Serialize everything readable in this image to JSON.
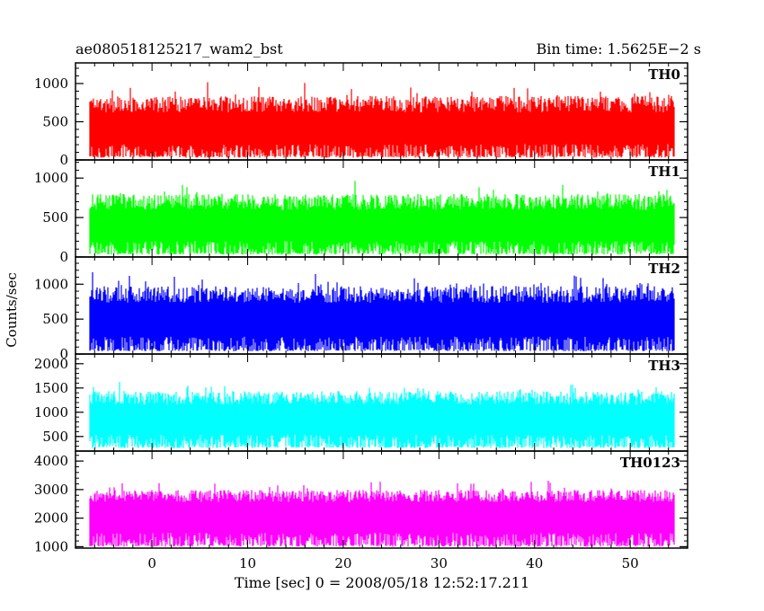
{
  "header": {
    "title": "ae080518125217_wam2_bst",
    "bin_time": "Bin time: 1.5625E−2 s"
  },
  "axes": {
    "ylabel": "Counts/sec",
    "xlabel": "Time [sec] 0 = 2008/05/18 12:52:17.211"
  },
  "chart_data": {
    "type": "line",
    "x_range": [
      -8,
      56
    ],
    "x_ticks": [
      0,
      10,
      20,
      30,
      40,
      50
    ],
    "x_tick_labels": [
      "0",
      "10",
      "20",
      "30",
      "40",
      "50"
    ],
    "x_minor_step": 2,
    "panels": [
      {
        "name": "TH0",
        "color": "#ff0000",
        "ylim": [
          0,
          1270
        ],
        "yticks": [
          0,
          500,
          1000
        ],
        "ytick_labels": [
          "0",
          "500",
          "1000"
        ],
        "y_minor_step": 100,
        "mean": 540,
        "spread": 330,
        "floor": 30
      },
      {
        "name": "TH1",
        "color": "#00ff00",
        "ylim": [
          0,
          1230
        ],
        "yticks": [
          0,
          500,
          1000
        ],
        "ytick_labels": [
          "0",
          "500",
          "1000"
        ],
        "y_minor_step": 100,
        "mean": 520,
        "spread": 310,
        "floor": 30
      },
      {
        "name": "TH2",
        "color": "#0000ff",
        "ylim": [
          0,
          1390
        ],
        "yticks": [
          0,
          500,
          1000
        ],
        "ytick_labels": [
          "0",
          "500",
          "1000"
        ],
        "y_minor_step": 100,
        "mean": 640,
        "spread": 370,
        "floor": 40
      },
      {
        "name": "TH3",
        "color": "#00ffff",
        "ylim": [
          200,
          2200
        ],
        "yticks": [
          500,
          1000,
          1500,
          2000
        ],
        "ytick_labels": [
          "500",
          "1000",
          "1500",
          "2000"
        ],
        "y_minor_step": 100,
        "mean": 1050,
        "spread": 430,
        "floor": 260
      },
      {
        "name": "TH0123",
        "color": "#ff00ff",
        "ylim": [
          950,
          4350
        ],
        "yticks": [
          1000,
          2000,
          3000,
          4000
        ],
        "ytick_labels": [
          "1000",
          "2000",
          "3000",
          "4000"
        ],
        "y_minor_step": 200,
        "mean": 2400,
        "spread": 650,
        "floor": 1000
      }
    ],
    "series_x_range": [
      -8,
      56
    ],
    "bin_time": 0.015625,
    "grid": false
  }
}
